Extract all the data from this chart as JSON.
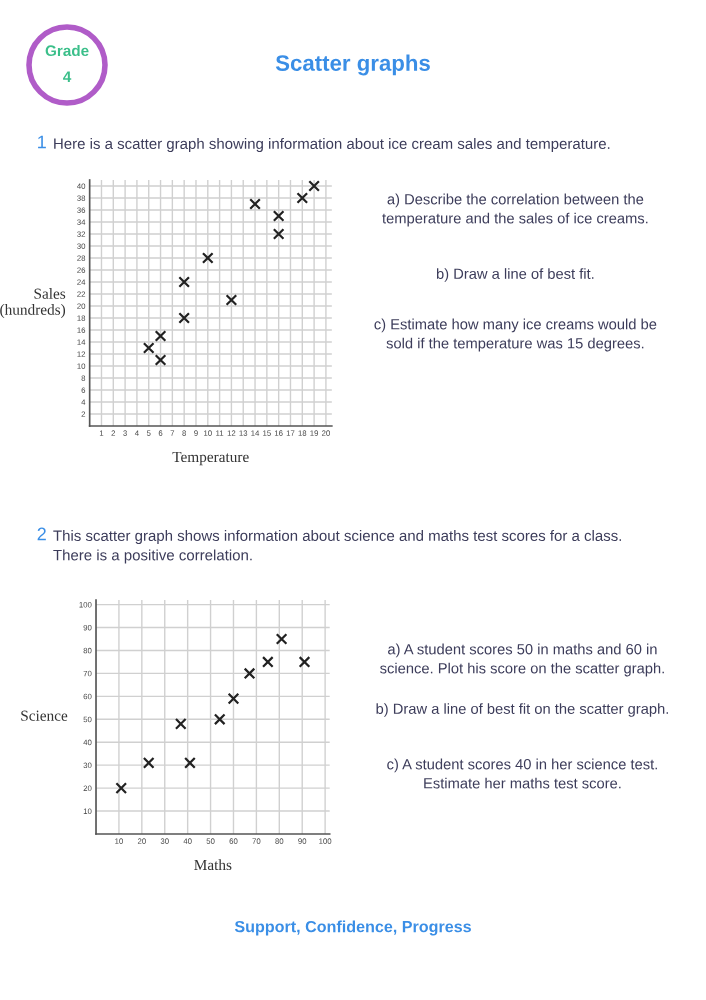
{
  "chart_data": [
    {
      "type": "scatter",
      "title": "Scatter graphs",
      "subtitle": "Here is a scatter graph showing information about ice cream sales and temperature.",
      "xlabel": "Temperature",
      "ylabel": "Sales\n(hundreds)",
      "x": [
        5,
        6,
        6,
        8,
        8,
        10,
        12,
        14,
        16,
        16,
        18,
        19
      ],
      "series": [
        {
          "color": "#222222",
          "values": [
            13,
            15,
            11,
            24,
            18,
            28,
            21,
            37,
            35,
            32,
            38,
            40
          ]
        }
      ],
      "marker": "cross",
      "grid": true,
      "xlim": [
        0,
        20.5
      ],
      "xticks": [
        1,
        2,
        3,
        4,
        5,
        6,
        7,
        8,
        9,
        10,
        11,
        12,
        13,
        14,
        15,
        16,
        17,
        18,
        19,
        20
      ],
      "ylim": [
        0,
        41
      ],
      "yticks": [
        2,
        4,
        6,
        8,
        10,
        12,
        14,
        16,
        18,
        20,
        22,
        24,
        26,
        28,
        30,
        32,
        34,
        36,
        38,
        40
      ],
      "annotations": [
        "Grade",
        "4",
        "1",
        "a) Describe the correlation between the\ntemperature and the sales of ice creams.",
        "b) Draw a line of best fit.",
        "c) Estimate how many ice creams would be\nsold if the temperature was 15 degrees."
      ]
    },
    {
      "type": "scatter",
      "subtitle": "This scatter graph shows information about science and maths test scores for a class.\nThere is a positive correlation.",
      "xlabel": "Maths",
      "ylabel": "Science",
      "x": [
        11,
        23,
        37,
        41,
        54,
        60,
        67,
        75,
        81,
        91
      ],
      "series": [
        {
          "color": "#222222",
          "values": [
            20,
            31,
            48,
            31,
            50,
            59,
            70,
            75,
            85,
            75
          ]
        }
      ],
      "marker": "cross",
      "grid": true,
      "xlim": [
        0,
        102
      ],
      "xticks": [
        10,
        20,
        30,
        40,
        50,
        60,
        70,
        80,
        90,
        100
      ],
      "ylim": [
        0,
        102
      ],
      "yticks": [
        10,
        20,
        30,
        40,
        50,
        60,
        70,
        80,
        90,
        100
      ],
      "annotations": [
        "2",
        "a) A student scores 50 in maths and 60 in\nscience. Plot his score on the scatter graph.",
        "b) Draw a line of best fit on the scatter graph.",
        "c) A student scores 40 in her science test.\nEstimate her maths test score.",
        "Support, Confidence, Progress"
      ]
    }
  ]
}
